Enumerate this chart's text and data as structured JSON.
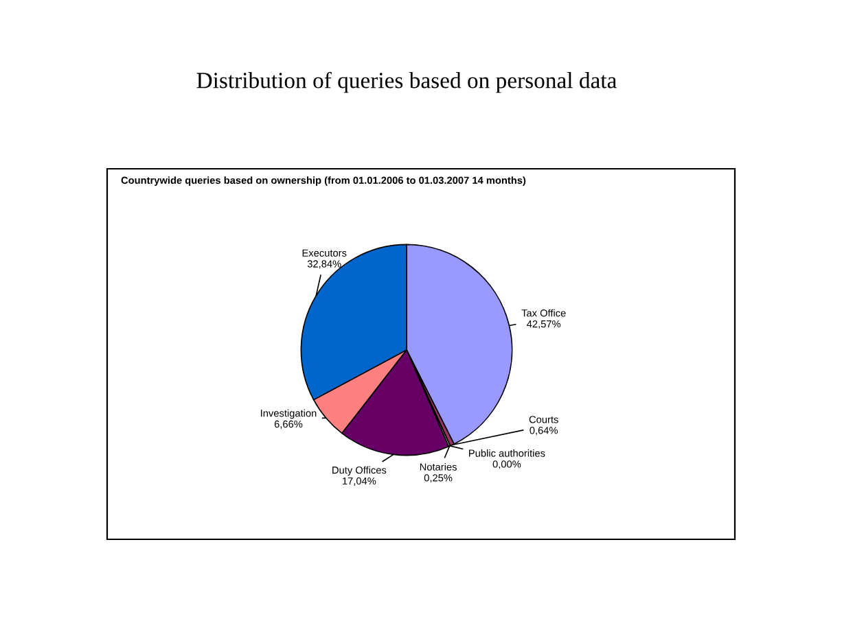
{
  "chart_data": {
    "type": "pie",
    "title": "Distribution of queries based on personal data",
    "subtitle": "Countrywide queries based on ownership (from 01.01.2006 to 01.03.2007 14 months)",
    "categories": [
      "Tax Office",
      "Courts",
      "Public authorities",
      "Notaries",
      "Duty Offices",
      "Investigation",
      "Executors"
    ],
    "values": [
      42.57,
      0.64,
      0.0,
      0.25,
      17.04,
      6.66,
      32.84
    ],
    "value_labels": [
      "42,57%",
      "0,64%",
      "0,00%",
      "0,25%",
      "17,04%",
      "6,66%",
      "32,84%"
    ],
    "colors": [
      "#9999ff",
      "#993366",
      "#ffffcc",
      "#ffffcc",
      "#660066",
      "#ff8080",
      "#0066cc"
    ]
  }
}
